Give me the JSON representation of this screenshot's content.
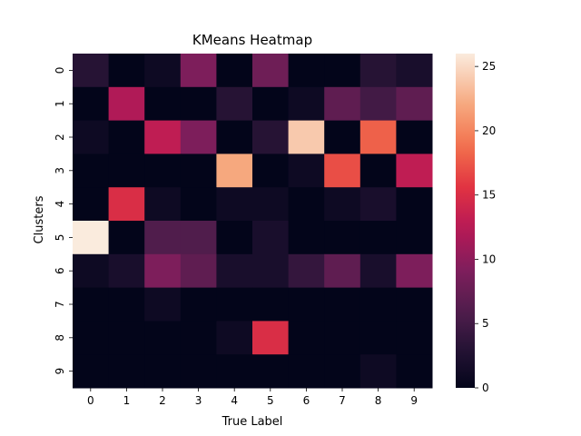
{
  "chart_data": {
    "type": "heatmap",
    "title": "KMeans Heatmap",
    "xlabel": "True Label",
    "ylabel": "Clusters",
    "x_categories": [
      "0",
      "1",
      "2",
      "3",
      "4",
      "5",
      "6",
      "7",
      "8",
      "9"
    ],
    "y_categories": [
      "0",
      "1",
      "2",
      "3",
      "4",
      "5",
      "6",
      "7",
      "8",
      "9"
    ],
    "values": [
      [
        3,
        0,
        1,
        9,
        0,
        8,
        0,
        0,
        3,
        2
      ],
      [
        0,
        12,
        0,
        0,
        3,
        0,
        1,
        7,
        5,
        7
      ],
      [
        1,
        0,
        13,
        9,
        0,
        3,
        24,
        0,
        18,
        0
      ],
      [
        0,
        0,
        0,
        0,
        22,
        0,
        1,
        17,
        0,
        13
      ],
      [
        0,
        15,
        1,
        0,
        1,
        1,
        0,
        1,
        2,
        0
      ],
      [
        26,
        0,
        6,
        6,
        0,
        2,
        0,
        0,
        0,
        0
      ],
      [
        1,
        2,
        9,
        7,
        2,
        2,
        4,
        7,
        2,
        9
      ],
      [
        0,
        0,
        1,
        0,
        0,
        0,
        0,
        0,
        0,
        0
      ],
      [
        0,
        0,
        0,
        0,
        1,
        15,
        0,
        0,
        0,
        0
      ],
      [
        0,
        0,
        0,
        0,
        0,
        0,
        0,
        0,
        1,
        0
      ]
    ],
    "colorbar": {
      "min": 0,
      "max": 26,
      "ticks": [
        0,
        5,
        10,
        15,
        20,
        25
      ]
    },
    "colormap": "rocket"
  }
}
